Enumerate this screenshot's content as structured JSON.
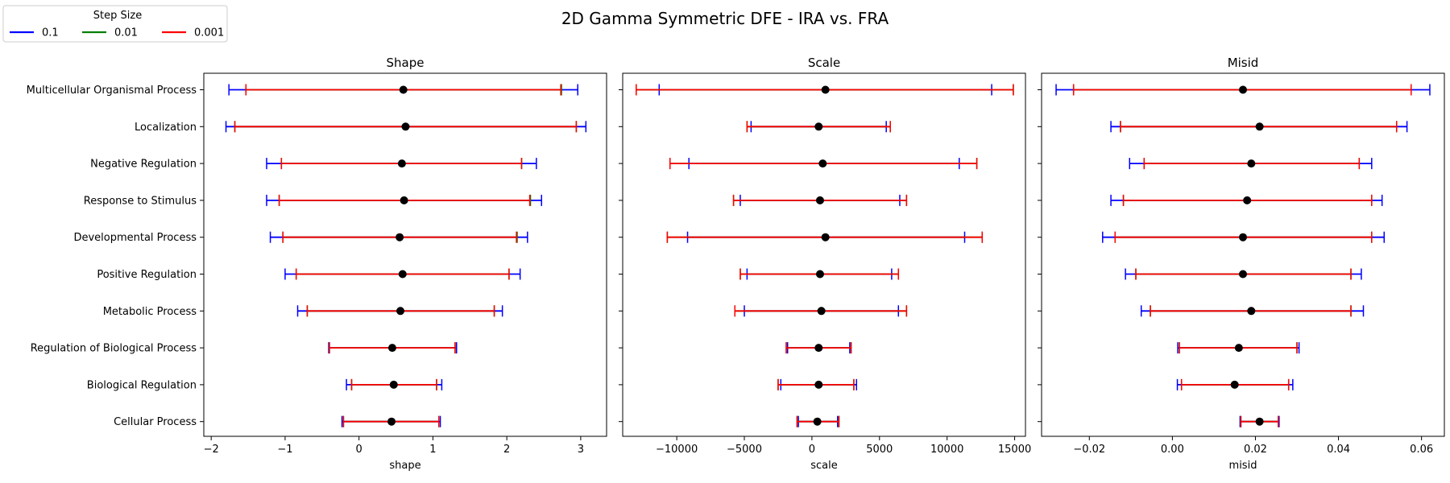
{
  "figure": {
    "title": "2D Gamma Symmetric DFE - IRA vs. FRA"
  },
  "legend": {
    "title": "Step Size",
    "placement": "top-left",
    "entries": [
      {
        "label": "0.1",
        "color": "#0000ff"
      },
      {
        "label": "0.01",
        "color": "#008000"
      },
      {
        "label": "0.001",
        "color": "#ff0000"
      }
    ]
  },
  "categories": [
    "Multicellular Organismal Process",
    "Localization",
    "Negative Regulation",
    "Response to Stimulus",
    "Developmental Process",
    "Positive Regulation",
    "Metabolic Process",
    "Regulation of Biological Process",
    "Biological Regulation",
    "Cellular Process"
  ],
  "chart_data": [
    {
      "type": "errorbar",
      "title": "Shape",
      "xlabel": "shape",
      "xlim": [
        -2.1,
        3.35
      ],
      "xticks": [
        -2,
        -1,
        0,
        1,
        2,
        3
      ],
      "xtick_labels": [
        "−2",
        "−1",
        "0",
        "1",
        "2",
        "3"
      ],
      "center_color": "#000000",
      "centers": [
        0.6,
        0.63,
        0.58,
        0.61,
        0.55,
        0.59,
        0.56,
        0.45,
        0.47,
        0.44
      ],
      "series": [
        {
          "name": "0.1",
          "color": "#0000ff",
          "low": [
            -1.76,
            -1.8,
            -1.25,
            -1.25,
            -1.2,
            -1.0,
            -0.83,
            -0.41,
            -0.17,
            -0.23
          ],
          "high": [
            2.96,
            3.07,
            2.4,
            2.47,
            2.28,
            2.18,
            1.94,
            1.32,
            1.12,
            1.1
          ]
        },
        {
          "name": "0.01",
          "color": "#008000",
          "low": [
            -1.53,
            -1.68,
            -1.05,
            -1.08,
            -1.03,
            -0.85,
            -0.7,
            -0.4,
            -0.1,
            -0.21
          ],
          "high": [
            2.74,
            2.94,
            2.2,
            2.32,
            2.14,
            2.03,
            1.83,
            1.3,
            1.05,
            1.08
          ]
        },
        {
          "name": "0.001",
          "color": "#ff0000",
          "low": [
            -1.53,
            -1.68,
            -1.05,
            -1.08,
            -1.03,
            -0.85,
            -0.7,
            -0.4,
            -0.1,
            -0.21
          ],
          "high": [
            2.73,
            2.94,
            2.2,
            2.31,
            2.13,
            2.03,
            1.83,
            1.3,
            1.05,
            1.08
          ]
        }
      ]
    },
    {
      "type": "errorbar",
      "title": "Scale",
      "xlabel": "scale",
      "xlim": [
        -14000,
        15800
      ],
      "xticks": [
        -10000,
        -5000,
        0,
        5000,
        10000,
        15000
      ],
      "xtick_labels": [
        "−10000",
        "−5000",
        "0",
        "5000",
        "10000",
        "15000"
      ],
      "center_color": "#000000",
      "centers": [
        1000,
        500,
        800,
        600,
        1000,
        600,
        700,
        500,
        500,
        400
      ],
      "series": [
        {
          "name": "0.1",
          "color": "#0000ff",
          "low": [
            -11300,
            -4500,
            -9100,
            -5300,
            -9200,
            -4800,
            -5000,
            -1800,
            -2300,
            -1000
          ],
          "high": [
            13300,
            5500,
            10900,
            6500,
            11300,
            5900,
            6400,
            2800,
            3300,
            1900
          ]
        },
        {
          "name": "0.01",
          "color": "#008000",
          "low": [
            -13000,
            -4800,
            -10500,
            -5800,
            -10700,
            -5300,
            -5700,
            -1900,
            -2500,
            -1100
          ],
          "high": [
            14900,
            5800,
            12200,
            7000,
            12600,
            6400,
            7000,
            2900,
            3100,
            2000
          ]
        },
        {
          "name": "0.001",
          "color": "#ff0000",
          "low": [
            -13000,
            -4800,
            -10500,
            -5800,
            -10700,
            -5300,
            -5700,
            -1900,
            -2500,
            -1100
          ],
          "high": [
            14900,
            5800,
            12200,
            7000,
            12600,
            6400,
            7000,
            2900,
            3100,
            2000
          ]
        }
      ]
    },
    {
      "type": "errorbar",
      "title": "Misid",
      "xlabel": "misid",
      "xlim": [
        -0.0315,
        0.0655
      ],
      "xticks": [
        -0.02,
        0.0,
        0.02,
        0.04,
        0.06
      ],
      "xtick_labels": [
        "−0.02",
        "0.00",
        "0.02",
        "0.04",
        "0.06"
      ],
      "center_color": "#000000",
      "centers": [
        0.017,
        0.021,
        0.019,
        0.018,
        0.017,
        0.017,
        0.019,
        0.016,
        0.015,
        0.021
      ],
      "series": [
        {
          "name": "0.1",
          "color": "#0000ff",
          "low": [
            -0.028,
            -0.0148,
            -0.0103,
            -0.0148,
            -0.0168,
            -0.0113,
            -0.0075,
            0.0013,
            0.0012,
            0.0163
          ],
          "high": [
            0.062,
            0.0565,
            0.048,
            0.0505,
            0.051,
            0.0455,
            0.046,
            0.0305,
            0.029,
            0.0257
          ]
        },
        {
          "name": "0.01",
          "color": "#008000",
          "low": [
            -0.0238,
            -0.0125,
            -0.0068,
            -0.0118,
            -0.0138,
            -0.0088,
            -0.0053,
            0.0017,
            0.0022,
            0.0165
          ],
          "high": [
            0.0575,
            0.054,
            0.045,
            0.048,
            0.048,
            0.043,
            0.043,
            0.03,
            0.028,
            0.0255
          ]
        },
        {
          "name": "0.001",
          "color": "#ff0000",
          "low": [
            -0.0238,
            -0.0125,
            -0.0068,
            -0.0118,
            -0.0138,
            -0.0088,
            -0.0053,
            0.0017,
            0.0022,
            0.0165
          ],
          "high": [
            0.0575,
            0.054,
            0.045,
            0.048,
            0.048,
            0.043,
            0.043,
            0.03,
            0.028,
            0.0255
          ]
        }
      ]
    }
  ]
}
